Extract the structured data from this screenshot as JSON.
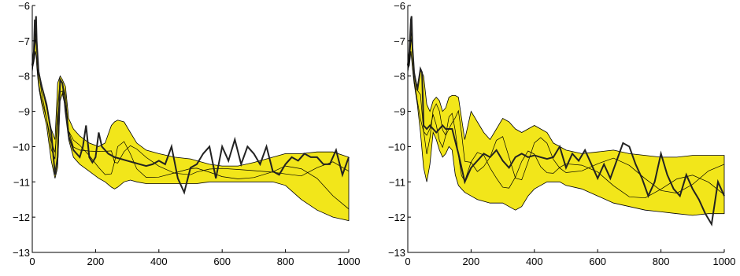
{
  "chart_data": [
    {
      "type": "area",
      "xlim": [
        0,
        1000
      ],
      "ylim": [
        -13,
        -6
      ],
      "xticks": [
        0,
        200,
        400,
        600,
        800,
        1000
      ],
      "yticks": [
        -13,
        -12,
        -11,
        -10,
        -9,
        -8,
        -7,
        -6
      ],
      "grid": false,
      "band_color": "#f2e61a",
      "curve_color": "#222222",
      "series": [
        {
          "role": "band_upper",
          "x": [
            0,
            5,
            10,
            12,
            15,
            18,
            22,
            30,
            45,
            60,
            72,
            80,
            88,
            95,
            105,
            115,
            130,
            150,
            180,
            210,
            230,
            250,
            260,
            270,
            290,
            310,
            330,
            360,
            400,
            450,
            500,
            520,
            560,
            600,
            650,
            700,
            760,
            800,
            850,
            900,
            950,
            1000
          ],
          "y": [
            -7.9,
            -7.4,
            -6.7,
            -6.3,
            -7.3,
            -7.7,
            -7.9,
            -8.3,
            -8.9,
            -9.5,
            -9.8,
            -8.2,
            -8.0,
            -8.1,
            -8.3,
            -9.2,
            -9.5,
            -9.7,
            -9.9,
            -10.0,
            -9.9,
            -9.4,
            -9.3,
            -9.25,
            -9.3,
            -9.6,
            -9.9,
            -10.1,
            -10.2,
            -10.3,
            -10.35,
            -10.4,
            -10.5,
            -10.55,
            -10.55,
            -10.45,
            -10.3,
            -10.2,
            -10.2,
            -10.15,
            -10.15,
            -10.3
          ]
        },
        {
          "role": "band_lower",
          "x": [
            0,
            5,
            10,
            12,
            15,
            18,
            22,
            30,
            45,
            60,
            72,
            80,
            88,
            95,
            105,
            115,
            130,
            150,
            180,
            210,
            230,
            250,
            260,
            270,
            290,
            310,
            330,
            360,
            400,
            450,
            500,
            520,
            560,
            600,
            650,
            700,
            760,
            800,
            850,
            900,
            950,
            1000
          ],
          "y": [
            -7.8,
            -7.6,
            -7.3,
            -7.4,
            -7.8,
            -8.1,
            -8.4,
            -8.8,
            -9.4,
            -10.4,
            -10.9,
            -10.6,
            -8.7,
            -8.5,
            -8.9,
            -9.8,
            -10.3,
            -10.5,
            -10.7,
            -10.9,
            -11.0,
            -11.15,
            -11.2,
            -11.15,
            -11.0,
            -10.95,
            -11.0,
            -11.05,
            -11.05,
            -11.05,
            -11.05,
            -11.05,
            -11.0,
            -11.0,
            -11.0,
            -11.0,
            -11.0,
            -11.1,
            -11.5,
            -11.8,
            -12.0,
            -12.1
          ]
        },
        {
          "role": "measured",
          "x": [
            0,
            5,
            8,
            10,
            12,
            14,
            16,
            20,
            30,
            45,
            60,
            72,
            80,
            88,
            95,
            100,
            105,
            115,
            130,
            150,
            160,
            170,
            180,
            190,
            200,
            210,
            220,
            240,
            260,
            280,
            300,
            320,
            340,
            360,
            380,
            400,
            420,
            440,
            460,
            480,
            500,
            520,
            540,
            560,
            580,
            600,
            620,
            640,
            660,
            680,
            700,
            720,
            740,
            760,
            780,
            800,
            820,
            840,
            860,
            880,
            900,
            920,
            940,
            960,
            980,
            1000
          ],
          "y": [
            -7.7,
            -7.3,
            -6.4,
            -6.6,
            -6.3,
            -7.0,
            -7.3,
            -7.9,
            -8.3,
            -8.8,
            -9.6,
            -10.8,
            -10.3,
            -8.1,
            -8.2,
            -8.5,
            -9.0,
            -9.7,
            -10.1,
            -10.3,
            -10.0,
            -9.4,
            -10.3,
            -10.45,
            -10.3,
            -9.6,
            -10.0,
            -10.2,
            -10.3,
            -10.35,
            -10.4,
            -10.45,
            -10.5,
            -10.55,
            -10.5,
            -10.4,
            -10.5,
            -10.0,
            -10.9,
            -11.3,
            -10.6,
            -10.5,
            -10.2,
            -10.0,
            -10.9,
            -10.0,
            -10.4,
            -9.8,
            -10.5,
            -10.0,
            -10.2,
            -10.5,
            -10.0,
            -10.7,
            -10.8,
            -10.5,
            -10.3,
            -10.4,
            -10.2,
            -10.3,
            -10.3,
            -10.5,
            -10.5,
            -10.1,
            -10.8,
            -10.3
          ]
        }
      ]
    },
    {
      "type": "area",
      "xlim": [
        0,
        1000
      ],
      "ylim": [
        -13,
        -6
      ],
      "xticks": [
        0,
        200,
        400,
        600,
        800,
        1000
      ],
      "yticks": [
        -13,
        -12,
        -11,
        -10,
        -9,
        -8,
        -7,
        -6
      ],
      "grid": false,
      "band_color": "#f2e61a",
      "curve_color": "#222222",
      "series": [
        {
          "role": "band_upper",
          "x": [
            0,
            5,
            10,
            12,
            15,
            20,
            30,
            40,
            50,
            60,
            70,
            80,
            90,
            100,
            110,
            120,
            130,
            140,
            150,
            160,
            170,
            180,
            200,
            220,
            240,
            260,
            280,
            300,
            320,
            340,
            360,
            380,
            400,
            420,
            440,
            460,
            480,
            500,
            550,
            600,
            650,
            700,
            750,
            800,
            850,
            900,
            950,
            1000
          ],
          "y": [
            -7.9,
            -7.5,
            -6.6,
            -6.3,
            -7.3,
            -7.9,
            -8.3,
            -7.8,
            -8.0,
            -8.8,
            -9.0,
            -8.7,
            -8.6,
            -8.7,
            -9.0,
            -8.9,
            -8.6,
            -8.55,
            -8.55,
            -8.6,
            -9.2,
            -9.8,
            -9.0,
            -9.3,
            -9.6,
            -9.8,
            -9.5,
            -9.2,
            -9.3,
            -9.5,
            -9.6,
            -9.5,
            -9.4,
            -9.5,
            -9.6,
            -9.9,
            -10.0,
            -10.1,
            -10.2,
            -10.15,
            -10.1,
            -10.2,
            -10.25,
            -10.3,
            -10.3,
            -10.25,
            -10.25,
            -10.25
          ]
        },
        {
          "role": "band_lower",
          "x": [
            0,
            5,
            10,
            12,
            15,
            20,
            30,
            40,
            50,
            60,
            70,
            80,
            90,
            100,
            110,
            120,
            130,
            140,
            150,
            160,
            170,
            180,
            200,
            220,
            240,
            260,
            280,
            300,
            320,
            340,
            360,
            380,
            400,
            420,
            440,
            460,
            480,
            500,
            550,
            600,
            650,
            700,
            750,
            800,
            850,
            900,
            950,
            1000
          ],
          "y": [
            -7.8,
            -7.7,
            -7.3,
            -7.5,
            -7.8,
            -8.2,
            -8.8,
            -9.6,
            -10.6,
            -11.0,
            -10.5,
            -9.6,
            -9.8,
            -10.1,
            -10.3,
            -10.2,
            -10.0,
            -10.1,
            -10.8,
            -11.1,
            -11.2,
            -11.3,
            -11.4,
            -11.5,
            -11.55,
            -11.6,
            -11.6,
            -11.6,
            -11.7,
            -11.8,
            -11.7,
            -11.4,
            -11.2,
            -11.1,
            -11.0,
            -11.0,
            -11.0,
            -11.1,
            -11.2,
            -11.4,
            -11.6,
            -11.7,
            -11.8,
            -11.85,
            -11.9,
            -11.95,
            -11.9,
            -11.9
          ]
        },
        {
          "role": "measured",
          "x": [
            0,
            5,
            10,
            12,
            15,
            20,
            30,
            40,
            45,
            50,
            60,
            70,
            80,
            90,
            100,
            110,
            120,
            140,
            160,
            180,
            200,
            220,
            240,
            260,
            280,
            300,
            320,
            340,
            360,
            380,
            400,
            420,
            440,
            460,
            480,
            500,
            520,
            540,
            560,
            580,
            600,
            620,
            640,
            660,
            680,
            700,
            720,
            740,
            760,
            780,
            800,
            820,
            840,
            860,
            880,
            900,
            920,
            940,
            960,
            980,
            1000
          ],
          "y": [
            -7.7,
            -7.3,
            -6.4,
            -6.3,
            -7.2,
            -7.9,
            -8.4,
            -7.8,
            -7.9,
            -9.4,
            -9.5,
            -9.4,
            -9.5,
            -9.6,
            -9.5,
            -9.4,
            -9.5,
            -9.5,
            -10.2,
            -11.0,
            -10.6,
            -10.4,
            -10.2,
            -10.3,
            -10.1,
            -10.4,
            -10.6,
            -10.3,
            -10.2,
            -10.3,
            -10.25,
            -10.3,
            -10.35,
            -10.3,
            -10.0,
            -10.6,
            -10.2,
            -10.4,
            -10.1,
            -10.5,
            -10.9,
            -10.5,
            -10.9,
            -10.4,
            -9.9,
            -10.0,
            -10.5,
            -10.9,
            -11.4,
            -11.0,
            -10.2,
            -10.8,
            -11.2,
            -11.4,
            -10.8,
            -11.2,
            -11.5,
            -11.9,
            -12.2,
            -11.0,
            -11.4
          ]
        }
      ]
    }
  ]
}
